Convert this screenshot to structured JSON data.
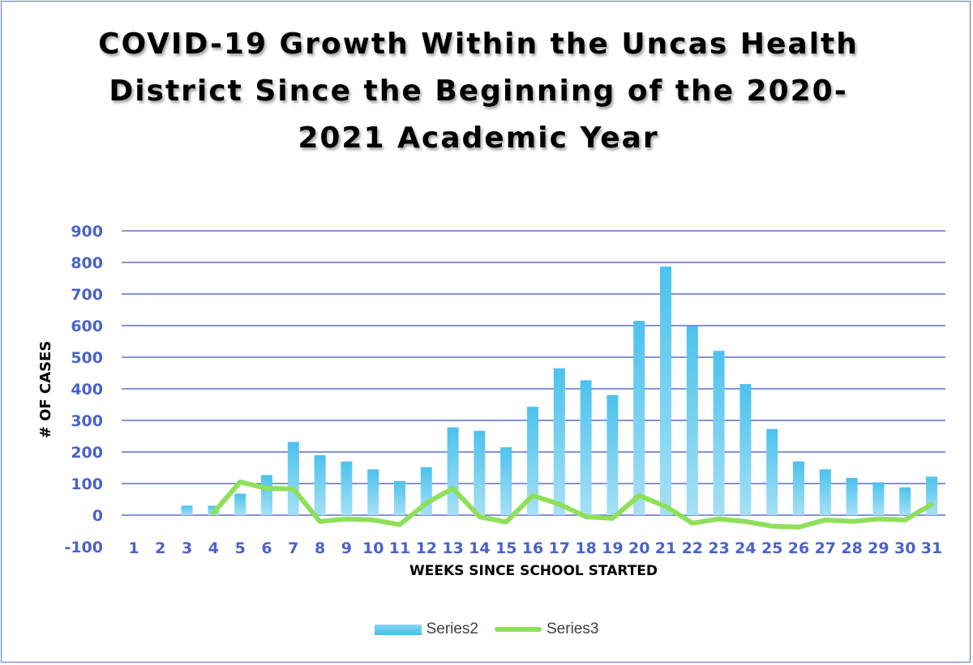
{
  "chart_data": {
    "type": "bar",
    "title_lines": [
      "COVID-19 Growth Within the Uncas Health",
      "District Since the Beginning of the 2020-",
      "2021 Academic Year"
    ],
    "xlabel": "WEEKS SINCE SCHOOL STARTED",
    "ylabel": "# OF CASES",
    "ylim": [
      -100,
      900
    ],
    "yticks": [
      -100,
      0,
      100,
      200,
      300,
      400,
      500,
      600,
      700,
      800,
      900
    ],
    "grid": true,
    "legend_position": "bottom",
    "categories": [
      "1",
      "2",
      "3",
      "4",
      "5",
      "6",
      "7",
      "8",
      "9",
      "10",
      "11",
      "12",
      "13",
      "14",
      "15",
      "16",
      "17",
      "18",
      "19",
      "20",
      "21",
      "22",
      "23",
      "24",
      "25",
      "26",
      "27",
      "28",
      "29",
      "30",
      "31"
    ],
    "series": [
      {
        "name": "Series2",
        "type": "bar",
        "color": "#4fc3ee",
        "values": [
          0,
          0,
          30,
          30,
          68,
          127,
          232,
          190,
          170,
          145,
          108,
          152,
          278,
          267,
          215,
          343,
          465,
          427,
          380,
          615,
          787,
          598,
          520,
          415,
          273,
          170,
          145,
          118,
          104,
          88,
          122
        ]
      },
      {
        "name": "Series3",
        "type": "line",
        "color": "#8ee05a",
        "values": [
          null,
          null,
          null,
          8,
          105,
          85,
          83,
          -20,
          -12,
          -15,
          -30,
          38,
          85,
          -5,
          -22,
          62,
          35,
          -5,
          -10,
          62,
          28,
          -25,
          -12,
          -20,
          -35,
          -38,
          -15,
          -20,
          -12,
          -15,
          35
        ]
      }
    ]
  }
}
